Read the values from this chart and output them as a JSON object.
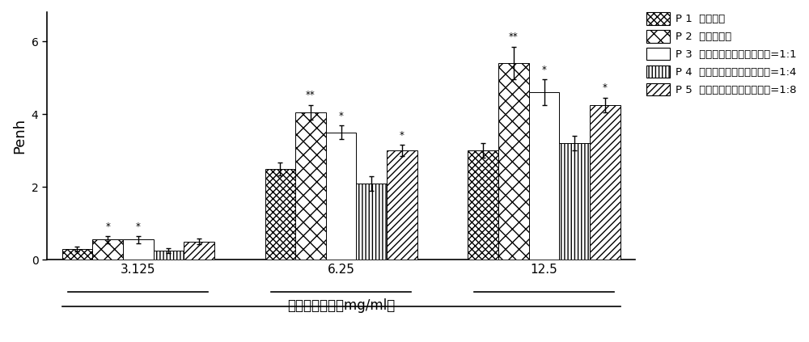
{
  "groups": [
    "3.125",
    "6.25",
    "12.5"
  ],
  "series_labels": [
    "P 1  生理盐水",
    "P 2  依地酸二钓",
    "P 3  依地酸二钓：葡萄糖酸钓=1:1",
    "P 4  依地酸二钓：葡萄糖酸钓=1:4",
    "P 5  依地酸二钓：葡萄糖酸钓=1:8"
  ],
  "legend_labels_short": [
    "P 1  生理盐水",
    "P 2  依地酸二钓",
    "P 3  依地酸二钓：葡萄糖酸钓=1:1",
    "P 4  依地酸二钓：葡萄糖酸钓=1:4",
    "P 5  依地酸二钓：葡萄糖酸钓=1:8"
  ],
  "values": [
    [
      0.3,
      0.55,
      0.55,
      0.25,
      0.5
    ],
    [
      2.5,
      4.05,
      3.5,
      2.1,
      3.0
    ],
    [
      3.0,
      5.4,
      4.6,
      3.2,
      4.25
    ]
  ],
  "errors": [
    [
      0.07,
      0.1,
      0.1,
      0.07,
      0.08
    ],
    [
      0.18,
      0.2,
      0.18,
      0.2,
      0.15
    ],
    [
      0.2,
      0.45,
      0.35,
      0.2,
      0.2
    ]
  ],
  "significance": [
    [
      "",
      "*",
      "*",
      "",
      ""
    ],
    [
      "",
      "**",
      "*",
      "",
      "*"
    ],
    [
      "",
      "**",
      "*",
      "",
      "*"
    ]
  ],
  "hatch_patterns": [
    "xxxx",
    "xx",
    "====",
    "||||",
    "////"
  ],
  "bar_color": "#ffffff",
  "bar_edgecolor": "#000000",
  "ylabel": "Penh",
  "xlabel": "乙酰胆碱浓度（mg/ml）",
  "ylim": [
    0,
    6.8
  ],
  "yticks": [
    0,
    2,
    4,
    6
  ],
  "background_color": "#ffffff",
  "bar_width": 0.12,
  "group_centers": [
    0.35,
    1.15,
    1.95
  ]
}
